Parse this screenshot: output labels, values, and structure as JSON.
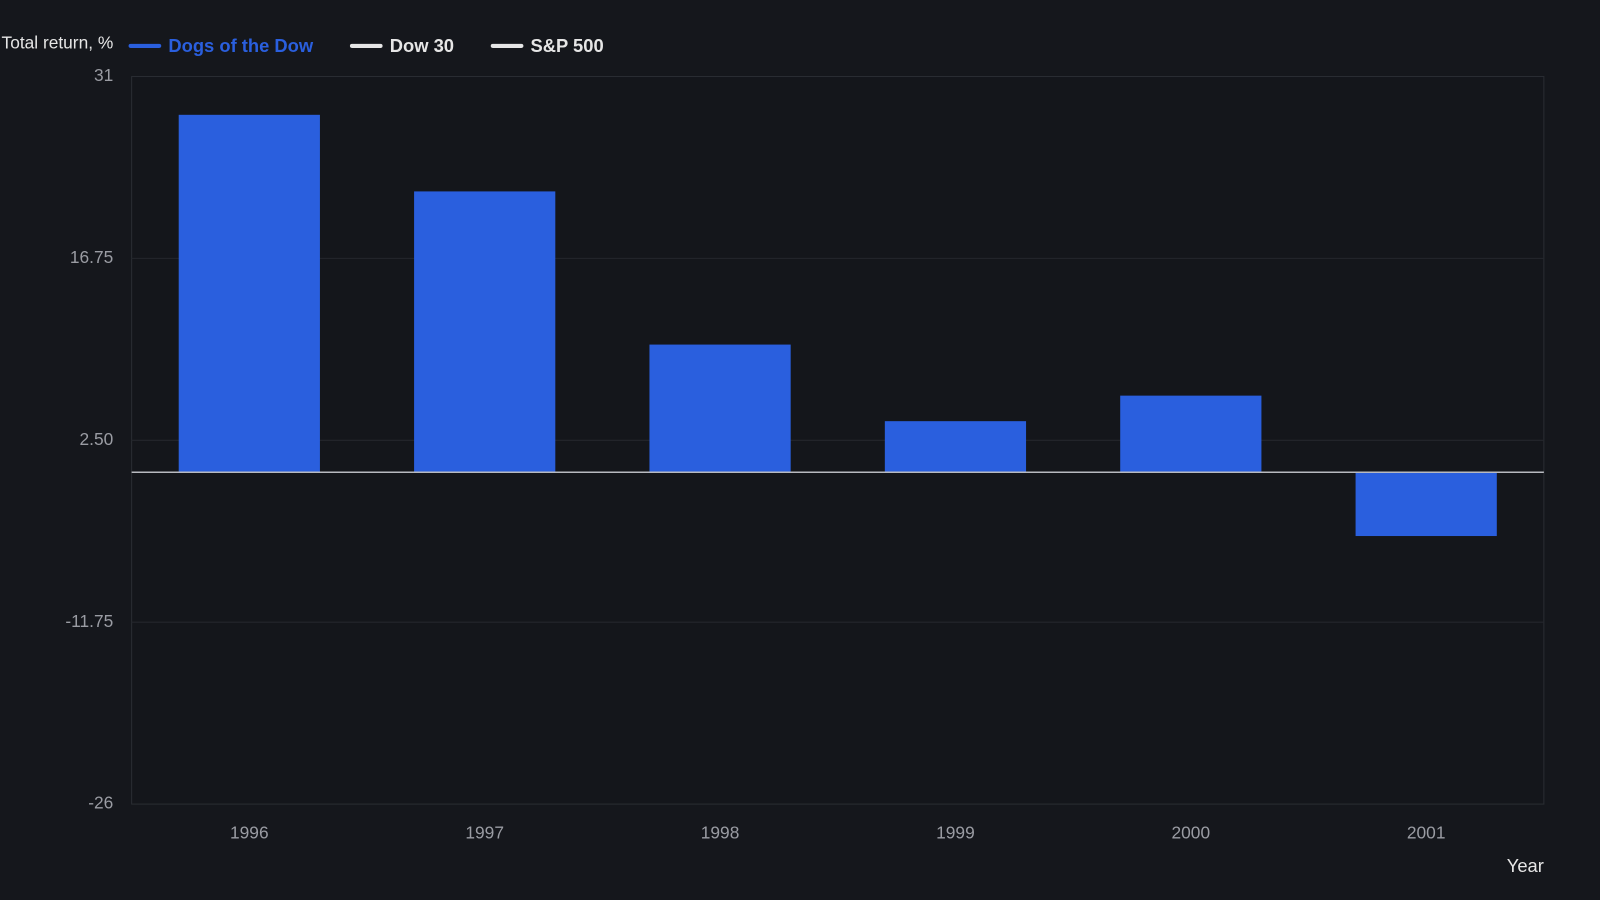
{
  "chart_data": {
    "type": "bar",
    "y_label": "Total return, %",
    "x_label": "Year",
    "categories": [
      "1996",
      "1997",
      "1998",
      "1999",
      "2000",
      "2001"
    ],
    "series": [
      {
        "name": "Dogs of the Dow",
        "color": "#2a5fde",
        "values": [
          28,
          22,
          10,
          4,
          6,
          -5
        ]
      },
      {
        "name": "Dow 30",
        "color": "#e6e6e6"
      },
      {
        "name": "S&P 500",
        "color": "#e6e6e6"
      }
    ],
    "ylim": [
      -26,
      31
    ],
    "yticks": [
      -26,
      -11.75,
      {
        "value": 2.5,
        "label": "2.50"
      },
      16.75,
      31
    ],
    "grid": true
  }
}
